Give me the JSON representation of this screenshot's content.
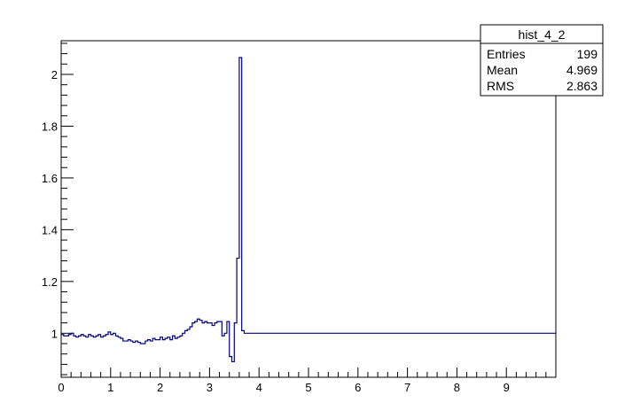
{
  "chart_data": {
    "type": "line",
    "title": "",
    "xlabel": "",
    "ylabel": "",
    "xlim": [
      0,
      10
    ],
    "ylim": [
      0.83,
      2.13
    ],
    "grid": false,
    "legend": "none",
    "line_color": "#000080",
    "x_ticks": [
      0,
      1,
      2,
      3,
      4,
      5,
      6,
      7,
      8,
      9
    ],
    "x_tick_labels": [
      "0",
      "1",
      "2",
      "3",
      "4",
      "5",
      "6",
      "7",
      "8",
      "9"
    ],
    "y_ticks": [
      1,
      1.2,
      1.4,
      1.6,
      1.8,
      2
    ],
    "y_tick_labels": [
      "1",
      "1.2",
      "1.4",
      "1.6",
      "1.8",
      "2"
    ],
    "series": [
      {
        "bin_width": 0.05,
        "x_start": 0,
        "values": [
          0.995,
          0.99,
          0.99,
          0.995,
          1.0,
          0.99,
          0.985,
          0.99,
          0.995,
          0.99,
          0.985,
          0.995,
          0.99,
          0.985,
          0.99,
          0.995,
          0.985,
          0.99,
          0.995,
          1.005,
          0.995,
          1.0,
          0.99,
          0.985,
          0.98,
          0.97,
          0.97,
          0.975,
          0.97,
          0.965,
          0.97,
          0.965,
          0.96,
          0.96,
          0.97,
          0.975,
          0.97,
          0.98,
          0.975,
          0.975,
          0.985,
          0.975,
          0.98,
          0.985,
          0.975,
          0.99,
          0.98,
          0.985,
          0.99,
          1.0,
          1.01,
          1.015,
          1.025,
          1.04,
          1.045,
          1.055,
          1.05,
          1.04,
          1.045,
          1.04,
          1.04,
          1.03,
          1.04,
          1.045,
          1.045,
          0.99,
          1.0,
          1.045,
          0.91,
          0.89,
          1.04,
          1.29,
          2.065,
          1.01
        ],
        "tail_from": 3.7,
        "tail_to": 10,
        "tail_value": 1.0
      }
    ],
    "stats_box": {
      "title": "hist_4_2",
      "rows": [
        {
          "label": "Entries",
          "value": "199"
        },
        {
          "label": "Mean",
          "value": "4.969"
        },
        {
          "label": "RMS",
          "value": "2.863"
        }
      ]
    }
  }
}
